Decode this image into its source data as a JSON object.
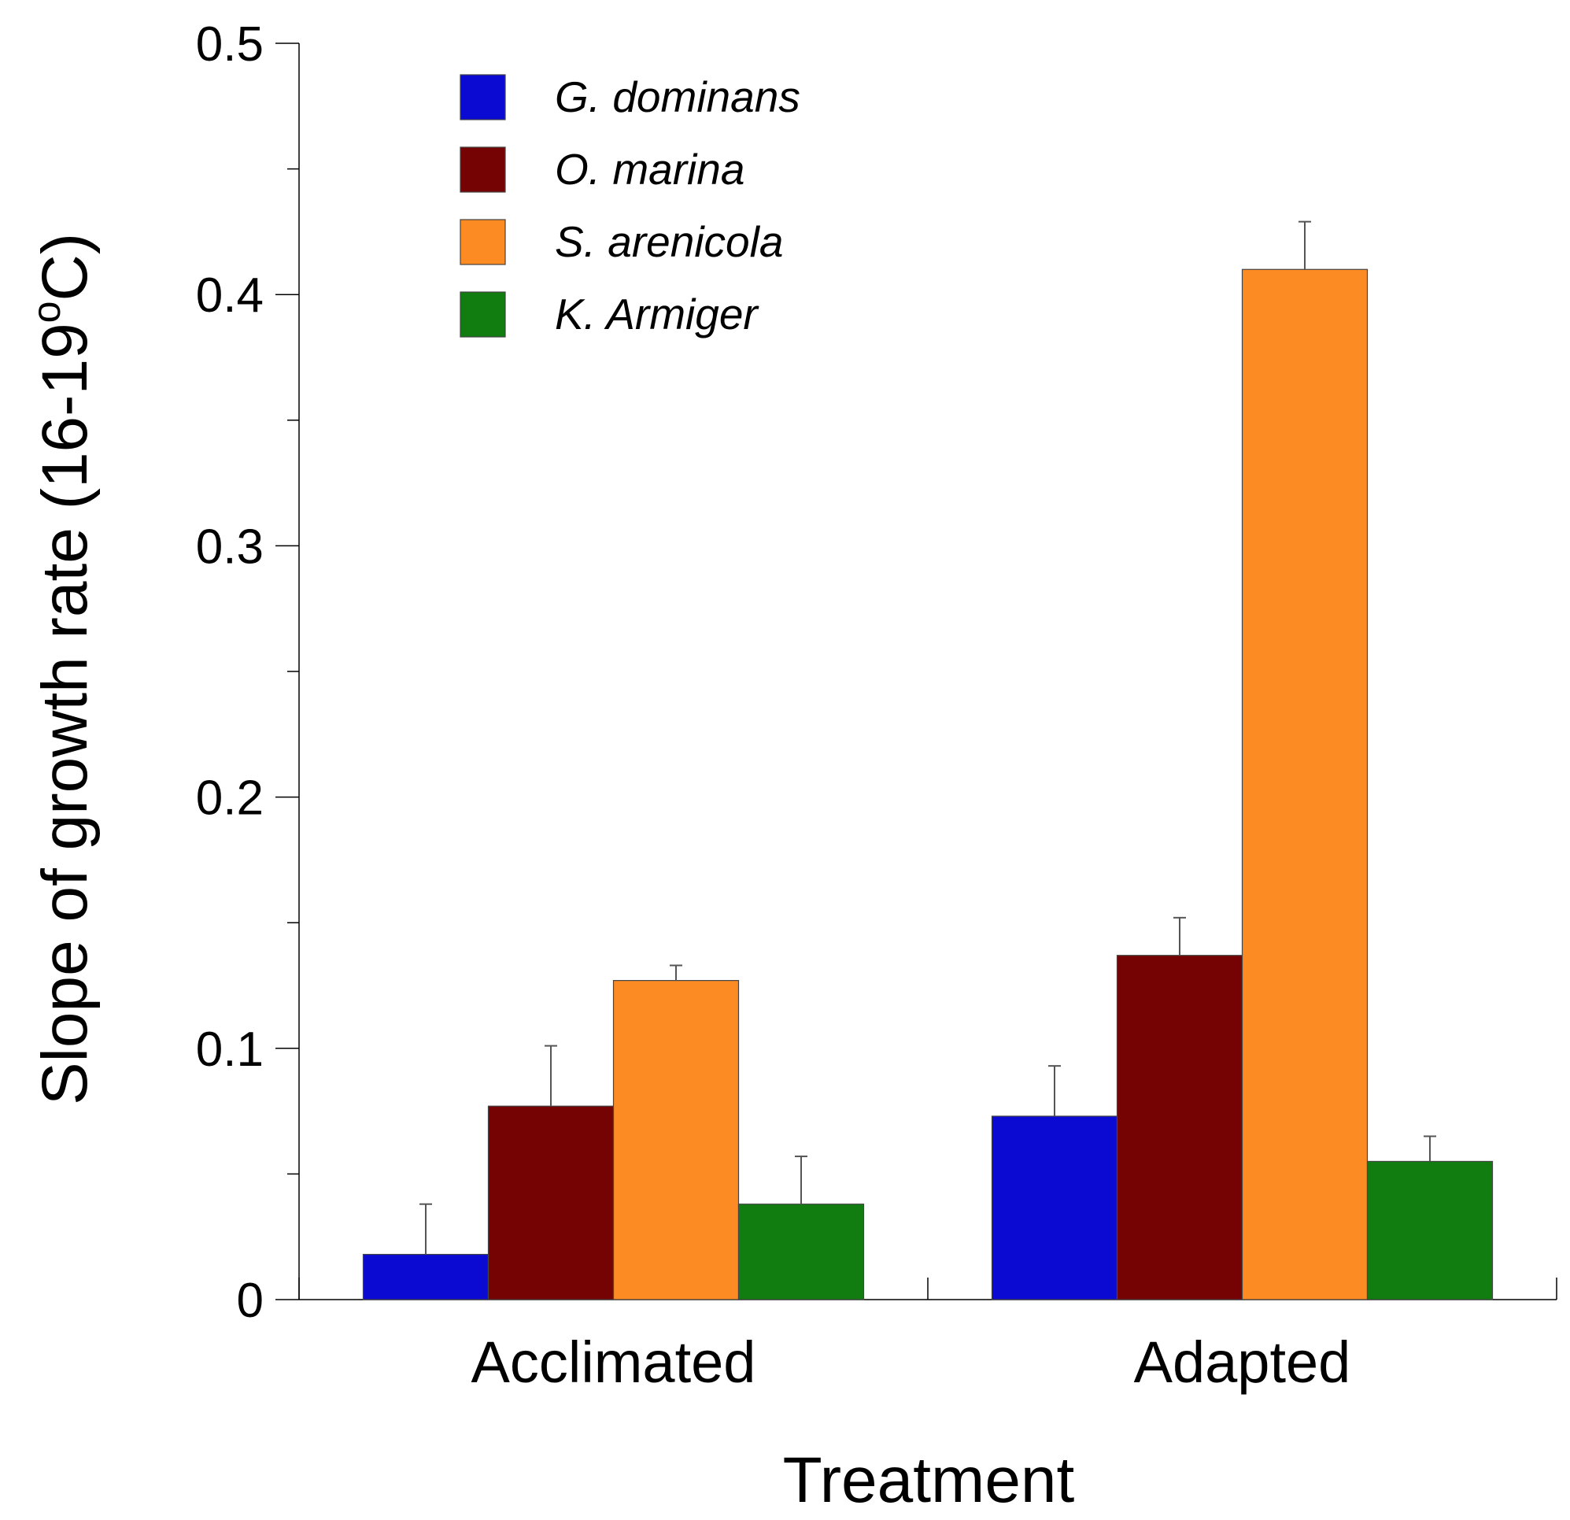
{
  "chart_data": {
    "type": "bar",
    "title": "",
    "xlabel": "Treatment",
    "ylabel": "Slope of growth rate (16-19°C)",
    "ylabel_parts": {
      "main": "Slope of growth rate (16-19",
      "degree": "o",
      "unit": "C)"
    },
    "ylim": [
      0,
      0.5
    ],
    "yticks": [
      0,
      0.1,
      0.2,
      0.3,
      0.4,
      0.5
    ],
    "ytick_labels": [
      "0",
      "0.1",
      "0.2",
      "0.3",
      "0.4",
      "0.5"
    ],
    "minor_ticks": true,
    "grid": false,
    "legend_position": "top-left",
    "categories": [
      "Acclimated",
      "Adapted"
    ],
    "series": [
      {
        "name": "G. dominans",
        "color": "#0a0ad2",
        "values": [
          0.018,
          0.073
        ],
        "errors": [
          0.02,
          0.02
        ]
      },
      {
        "name": "O. marina",
        "color": "#760303",
        "values": [
          0.077,
          0.137
        ],
        "errors": [
          0.024,
          0.015
        ]
      },
      {
        "name": "S. arenicola",
        "color": "#fb8b22",
        "values": [
          0.127,
          0.41
        ],
        "errors": [
          0.006,
          0.019
        ]
      },
      {
        "name": "K. Armiger",
        "color": "#117d11",
        "values": [
          0.038,
          0.055
        ],
        "errors": [
          0.019,
          0.01
        ]
      }
    ]
  }
}
